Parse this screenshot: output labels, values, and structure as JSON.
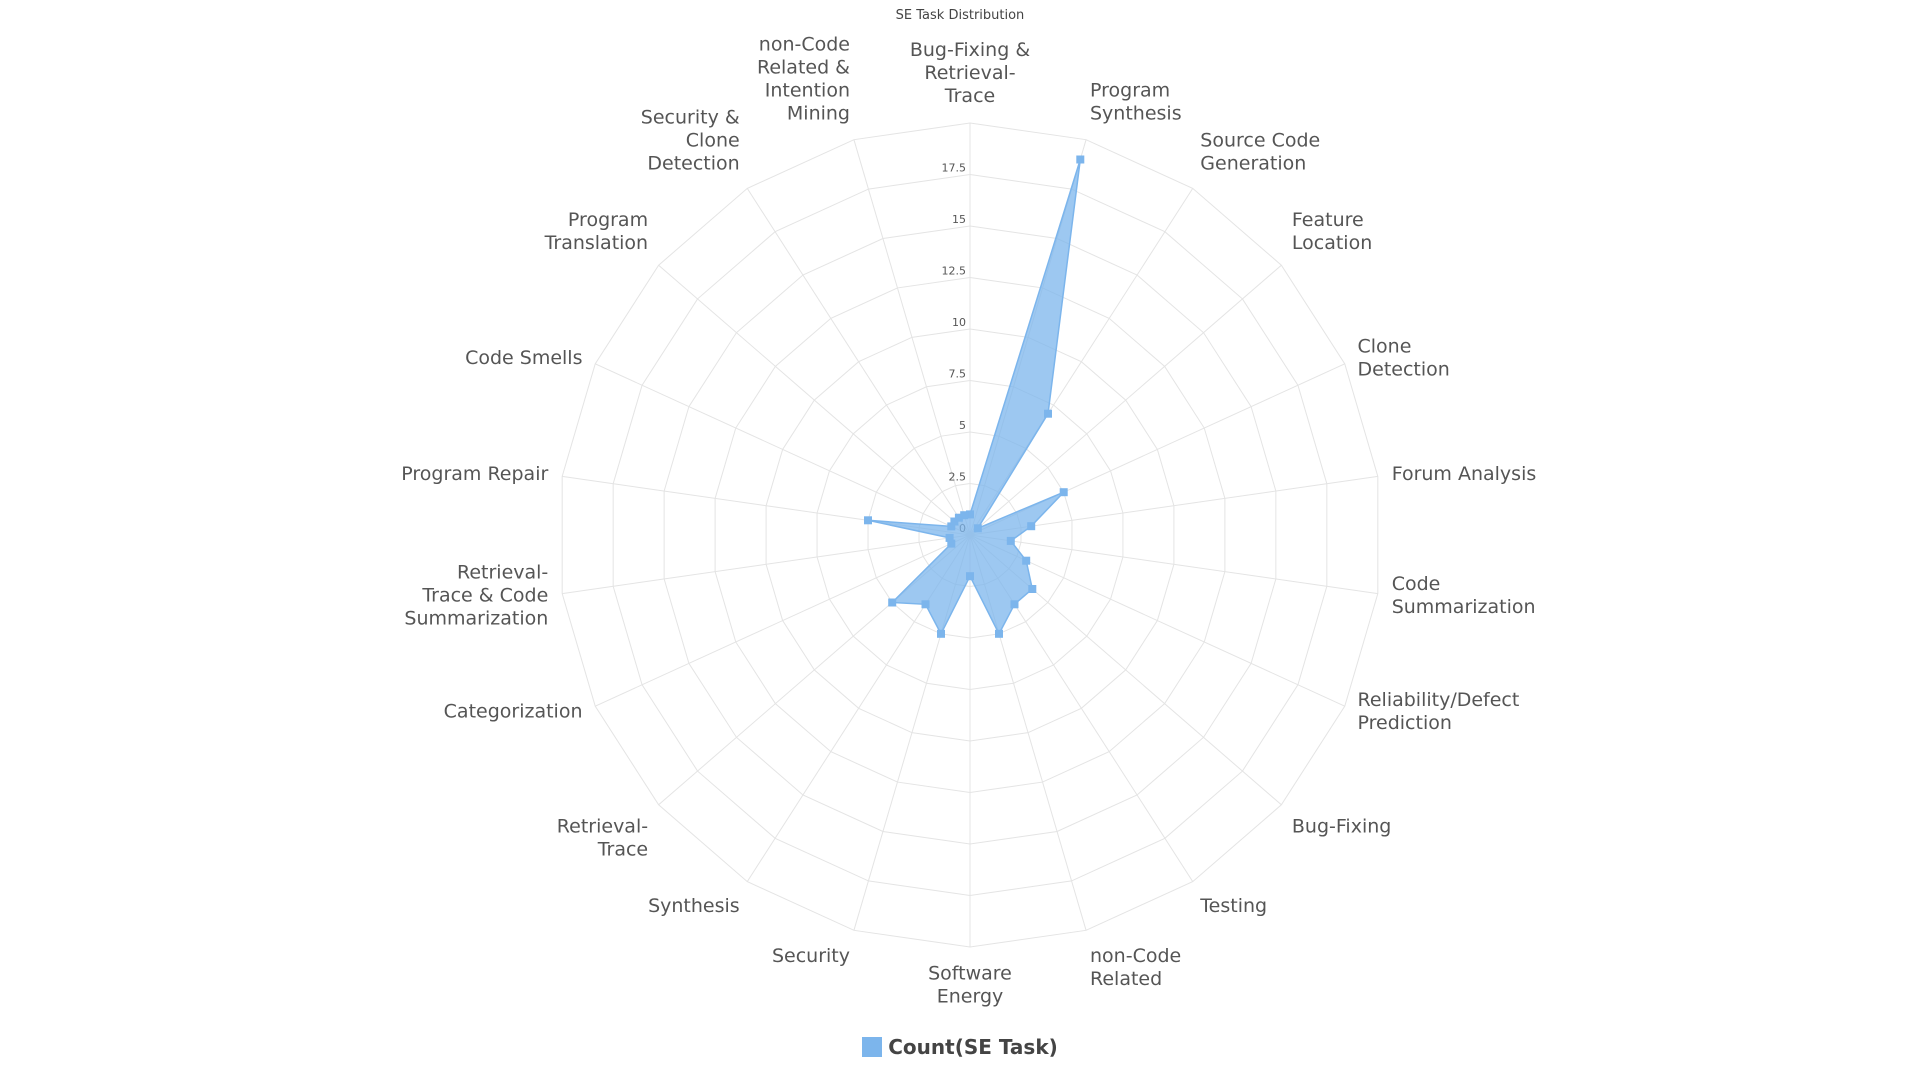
{
  "chart_data": {
    "type": "radar",
    "title": "SE Task Distribution",
    "categories": [
      "Bug-Fixing & Retrieval-Trace",
      "Program Synthesis",
      "Source Code Generation",
      "Feature Location",
      "Clone Detection",
      "Forum Analysis",
      "Code Summarization",
      "Reliability/Defect Prediction",
      "Bug-Fixing",
      "Testing",
      "non-Code Related",
      "Software Energy",
      "Security",
      "Synthesis",
      "Retrieval-Trace",
      "Categorization",
      "Retrieval-Trace & Code Summarization",
      "Program Repair",
      "Code Smells",
      "Program Translation",
      "Security & Clone Detection",
      "non-Code Related & Intention Mining"
    ],
    "series": [
      {
        "name": "Count(SE Task)",
        "values": [
          1,
          19,
          7,
          0.5,
          5,
          3,
          2,
          3,
          4,
          4,
          5,
          2,
          5,
          4,
          5,
          1,
          1,
          5,
          1,
          1,
          1,
          1
        ]
      }
    ],
    "rlim": [
      0,
      20
    ],
    "ticks": [
      0,
      2.5,
      5,
      7.5,
      10,
      12.5,
      15,
      17.5
    ],
    "tick_labels": [
      "0",
      "2.5",
      "5",
      "7.5",
      "10",
      "12.5",
      "15",
      "17.5"
    ],
    "color": "#7cb5ec",
    "legend_position": "bottom-center",
    "grid": true
  }
}
